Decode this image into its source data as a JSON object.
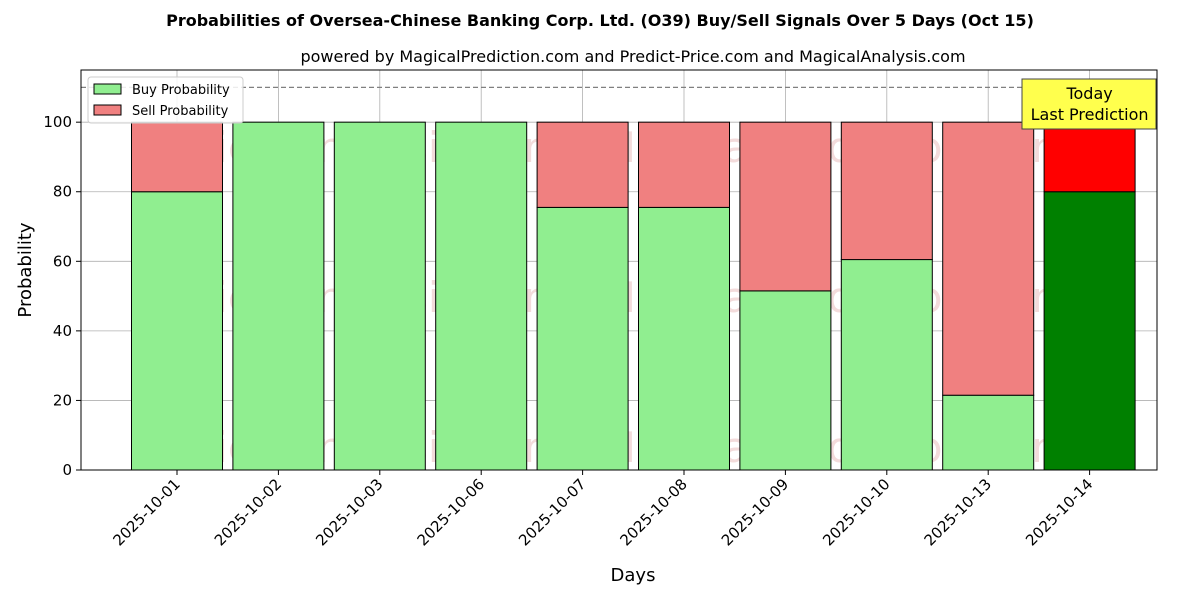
{
  "chart_data": {
    "type": "bar",
    "stacked": true,
    "title": "Probabilities of Oversea-Chinese Banking Corp. Ltd. (O39) Buy/Sell Signals Over 5 Days (Oct 15)",
    "subtitle": "powered by MagicalPrediction.com and Predict-Price.com and MagicalAnalysis.com",
    "xlabel": "Days",
    "ylabel": "Probability",
    "ylim": [
      0,
      115
    ],
    "yticks": [
      0,
      20,
      40,
      60,
      80,
      100
    ],
    "grid": true,
    "legend_position": "top-left",
    "categories": [
      "2025-10-01",
      "2025-10-02",
      "2025-10-03",
      "2025-10-06",
      "2025-10-07",
      "2025-10-08",
      "2025-10-09",
      "2025-10-10",
      "2025-10-13",
      "2025-10-14"
    ],
    "series": [
      {
        "name": "Buy Probability",
        "values": [
          80,
          100,
          100,
          100,
          75.5,
          75.5,
          51.5,
          60.5,
          21.5,
          80
        ],
        "color": "#90ee90",
        "highlight_color": "#008000"
      },
      {
        "name": "Sell Probability",
        "values": [
          20,
          0,
          0,
          0,
          24.5,
          24.5,
          48.5,
          39.5,
          78.5,
          20
        ],
        "color": "#f08080",
        "highlight_color": "#ff0000"
      }
    ],
    "highlight_index": 9,
    "reference_line": {
      "y": 110,
      "style": "dashed"
    },
    "annotation": {
      "lines": [
        "Today",
        "Last Prediction"
      ],
      "background": "#ffff4d"
    },
    "watermarks": [
      "MagicalAnalysis.com",
      "MagicalPrediction.com"
    ]
  }
}
